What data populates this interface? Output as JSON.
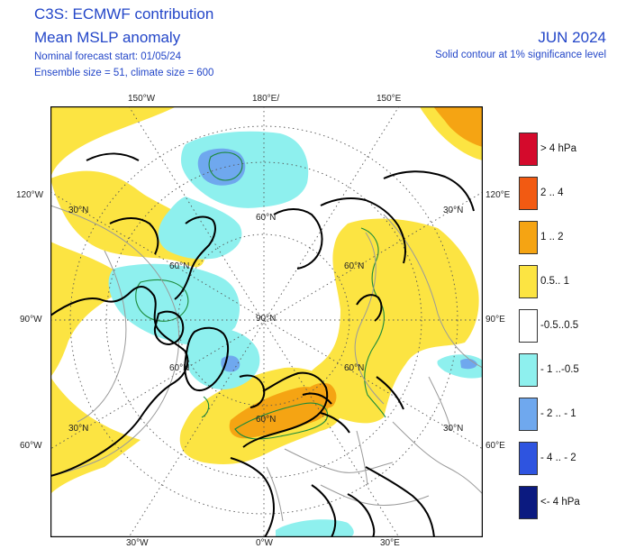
{
  "header": {
    "title1": "C3S: ECMWF contribution",
    "title2": "Mean MSLP anomaly",
    "line3": "Nominal forecast start: 01/05/24",
    "line4": "Ensemble size = 51, climate size = 600",
    "month": "JUN 2024",
    "note": "Solid contour at 1% significance level"
  },
  "axes": {
    "top": [
      "150°W",
      "180°E/",
      "150°E"
    ],
    "bottom": [
      "30°W",
      "0°W",
      "30°E"
    ],
    "left": [
      "120°W",
      "90°W",
      "60°W"
    ],
    "right": [
      "120°E",
      "90°E",
      "60°E"
    ],
    "lat_labels": [
      "30°N",
      "60°N",
      "90°N",
      "60°N",
      "30°N",
      "30°N",
      "60°N",
      "60°N",
      "60°N",
      "60°N",
      "30°N"
    ]
  },
  "legend": [
    {
      "label": "> 4 hPa",
      "color": "#d40a2c"
    },
    {
      "label": "2 .. 4",
      "color": "#f25a12"
    },
    {
      "label": "1 .. 2",
      "color": "#f5a413"
    },
    {
      "label": "0.5.. 1",
      "color": "#fce442"
    },
    {
      "label": "-0.5..0.5",
      "color": "#ffffff"
    },
    {
      "label": "- 1 ..-0.5",
      "color": "#8ef0ee"
    },
    {
      "label": "- 2 .. - 1",
      "color": "#6fa8ee"
    },
    {
      "label": "- 4 .. - 2",
      "color": "#2e54e0"
    },
    {
      "label": "<- 4 hPa",
      "color": "#0b1a80"
    }
  ]
}
